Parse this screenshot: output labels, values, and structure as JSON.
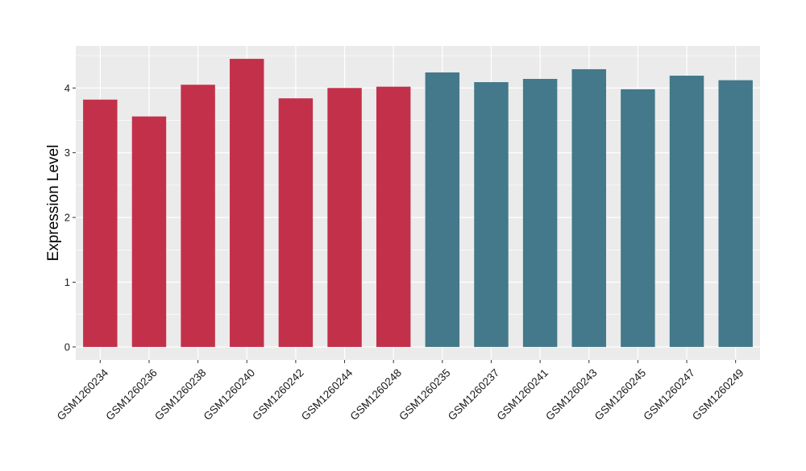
{
  "chart_data": {
    "type": "bar",
    "title": "",
    "xlabel": "",
    "ylabel": "Expression Level",
    "ylim": [
      -0.2,
      4.65
    ],
    "yticks": [
      0,
      1,
      2,
      3,
      4
    ],
    "grid": true,
    "categories": [
      "GSM1260234",
      "GSM1260236",
      "GSM1260238",
      "GSM1260240",
      "GSM1260242",
      "GSM1260244",
      "GSM1260248",
      "GSM1260235",
      "GSM1260237",
      "GSM1260241",
      "GSM1260243",
      "GSM1260245",
      "GSM1260247",
      "GSM1260249"
    ],
    "values": [
      3.82,
      3.56,
      4.05,
      4.45,
      3.84,
      4.0,
      4.02,
      4.24,
      4.09,
      4.14,
      4.29,
      3.98,
      4.19,
      4.12
    ],
    "bar_colors": [
      "#C3304A",
      "#C3304A",
      "#C3304A",
      "#C3304A",
      "#C3304A",
      "#C3304A",
      "#C3304A",
      "#43798A",
      "#43798A",
      "#43798A",
      "#43798A",
      "#43798A",
      "#43798A",
      "#43798A"
    ],
    "panel_background": "#EBEBEB",
    "grid_color": "#FFFFFF"
  }
}
